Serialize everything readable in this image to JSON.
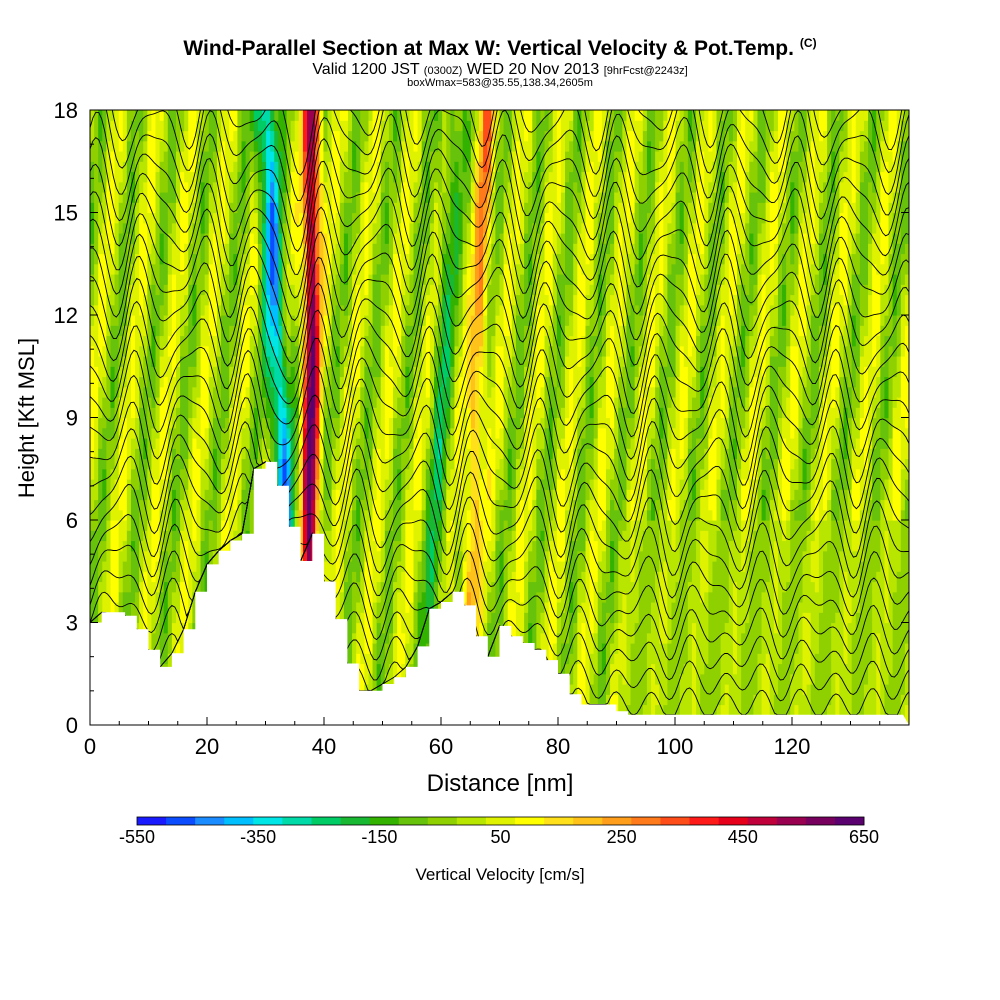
{
  "title": {
    "main": "Wind-Parallel Section at Max W: Vertical Velocity & Pot.Temp.",
    "copyright": "(C)",
    "valid_prefix": "Valid 1200 JST",
    "valid_z": "(0300Z)",
    "valid_date": "WED 20 Nov 2013",
    "fcst": "[9hrFcst@2243z]",
    "box": "boxWmax=583@35.55,138.34,2605m"
  },
  "chart_data": {
    "type": "heatmap",
    "xlabel": "Distance [nm]",
    "ylabel": "Height [Kft MSL]",
    "xlim": [
      0,
      140
    ],
    "ylim": [
      0,
      18
    ],
    "xticks": [
      0,
      20,
      40,
      60,
      80,
      100,
      120
    ],
    "yticks": [
      0,
      3,
      6,
      9,
      12,
      15,
      18
    ],
    "terrain": {
      "x": [
        0,
        2,
        6,
        8,
        10,
        12,
        14,
        16,
        18,
        20,
        22,
        24,
        26,
        28,
        30,
        32,
        34,
        36,
        38,
        40,
        42,
        44,
        46,
        48,
        50,
        52,
        54,
        56,
        58,
        60,
        62,
        64,
        66,
        68,
        70,
        72,
        74,
        76,
        78,
        80,
        82,
        84,
        86,
        88,
        90,
        92,
        94,
        96,
        98,
        100,
        105,
        110,
        115,
        120,
        125,
        130,
        135,
        139
      ],
      "height_kft": [
        3.0,
        3.3,
        3.2,
        2.8,
        2.2,
        1.7,
        2.1,
        2.8,
        3.9,
        4.7,
        5.1,
        5.4,
        5.6,
        7.5,
        7.7,
        7.0,
        5.8,
        4.8,
        5.6,
        4.2,
        3.1,
        1.8,
        1.0,
        1.0,
        1.2,
        1.4,
        1.7,
        2.3,
        3.4,
        3.6,
        3.9,
        3.5,
        2.6,
        2.0,
        2.9,
        2.6,
        2.4,
        2.2,
        1.9,
        1.5,
        0.9,
        0.6,
        0.6,
        0.6,
        0.4,
        0.3,
        0.3,
        0.3,
        0.3,
        0.3,
        0.3,
        0.3,
        0.3,
        0.3,
        0.3,
        0.3,
        0.3,
        0.3
      ]
    },
    "velocity_features": [
      {
        "name": "downdraft",
        "x_base": 35,
        "x_top": 30,
        "w_cm_s": -400
      },
      {
        "name": "updraft",
        "x_base": 37.5,
        "x_top": 38,
        "w_cm_s": 600
      },
      {
        "name": "updraft",
        "x_base": 64,
        "x_top": 68,
        "w_cm_s": 250
      },
      {
        "name": "downdraft",
        "x_base": 58,
        "x_top": 62,
        "w_cm_s": -150
      }
    ],
    "colorbar": {
      "label": "Vertical Velocity [cm/s]",
      "min": -550,
      "max": 650,
      "step": 50,
      "tick_labels": [
        "-550",
        "-350",
        "-150",
        "50",
        "250",
        "450",
        "650"
      ],
      "colors": [
        "#1a1aff",
        "#0b4cff",
        "#1a8cff",
        "#00bfff",
        "#00e5e5",
        "#00d9a8",
        "#00cc66",
        "#19b833",
        "#33b200",
        "#66c20a",
        "#8fd100",
        "#b8e600",
        "#dff200",
        "#ffff00",
        "#ffe01a",
        "#ffc21a",
        "#ff9e1a",
        "#ff7a1a",
        "#ff4d1a",
        "#ff1a1a",
        "#e6001a",
        "#c0003a",
        "#990050",
        "#77005f",
        "#5a006f"
      ]
    }
  }
}
